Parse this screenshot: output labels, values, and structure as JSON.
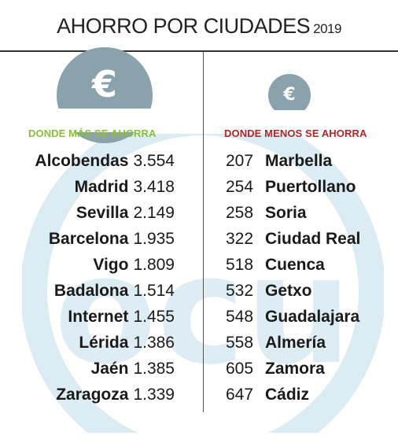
{
  "title": "AHORRO POR CIUDADES",
  "year": "2019",
  "colors": {
    "left_header": "#8bbf3a",
    "right_header": "#b0262a",
    "coin": "#8aa2ab",
    "watermark": "#cfe6ee"
  },
  "icons": {
    "big_coin": "euro-coin-icon",
    "small_coin": "euro-coin-icon",
    "euro_symbol": "€"
  },
  "chart_data": {
    "type": "table",
    "groups": [
      {
        "name": "DONDE MÁS SE AHORRA",
        "rows": [
          {
            "city": "Alcobendas",
            "value": "3.554"
          },
          {
            "city": "Madrid",
            "value": "3.418"
          },
          {
            "city": "Sevilla",
            "value": "2.149"
          },
          {
            "city": "Barcelona",
            "value": "1.935"
          },
          {
            "city": "Vigo",
            "value": "1.809"
          },
          {
            "city": "Badalona",
            "value": "1.514"
          },
          {
            "city": "Internet",
            "value": "1.455"
          },
          {
            "city": "Lérida",
            "value": "1.386"
          },
          {
            "city": "Jaén",
            "value": "1.385"
          },
          {
            "city": "Zaragoza",
            "value": "1.339"
          }
        ]
      },
      {
        "name": "DONDE MENOS SE AHORRA",
        "rows": [
          {
            "city": "Marbella",
            "value": "207"
          },
          {
            "city": "Puertollano",
            "value": "254"
          },
          {
            "city": "Soria",
            "value": "258"
          },
          {
            "city": "Ciudad Real",
            "value": "322"
          },
          {
            "city": "Cuenca",
            "value": "518"
          },
          {
            "city": "Getxo",
            "value": "532"
          },
          {
            "city": "Guadalajara",
            "value": "548"
          },
          {
            "city": "Almería",
            "value": "558"
          },
          {
            "city": "Zamora",
            "value": "605"
          },
          {
            "city": "Cádiz",
            "value": "647"
          }
        ]
      }
    ]
  }
}
